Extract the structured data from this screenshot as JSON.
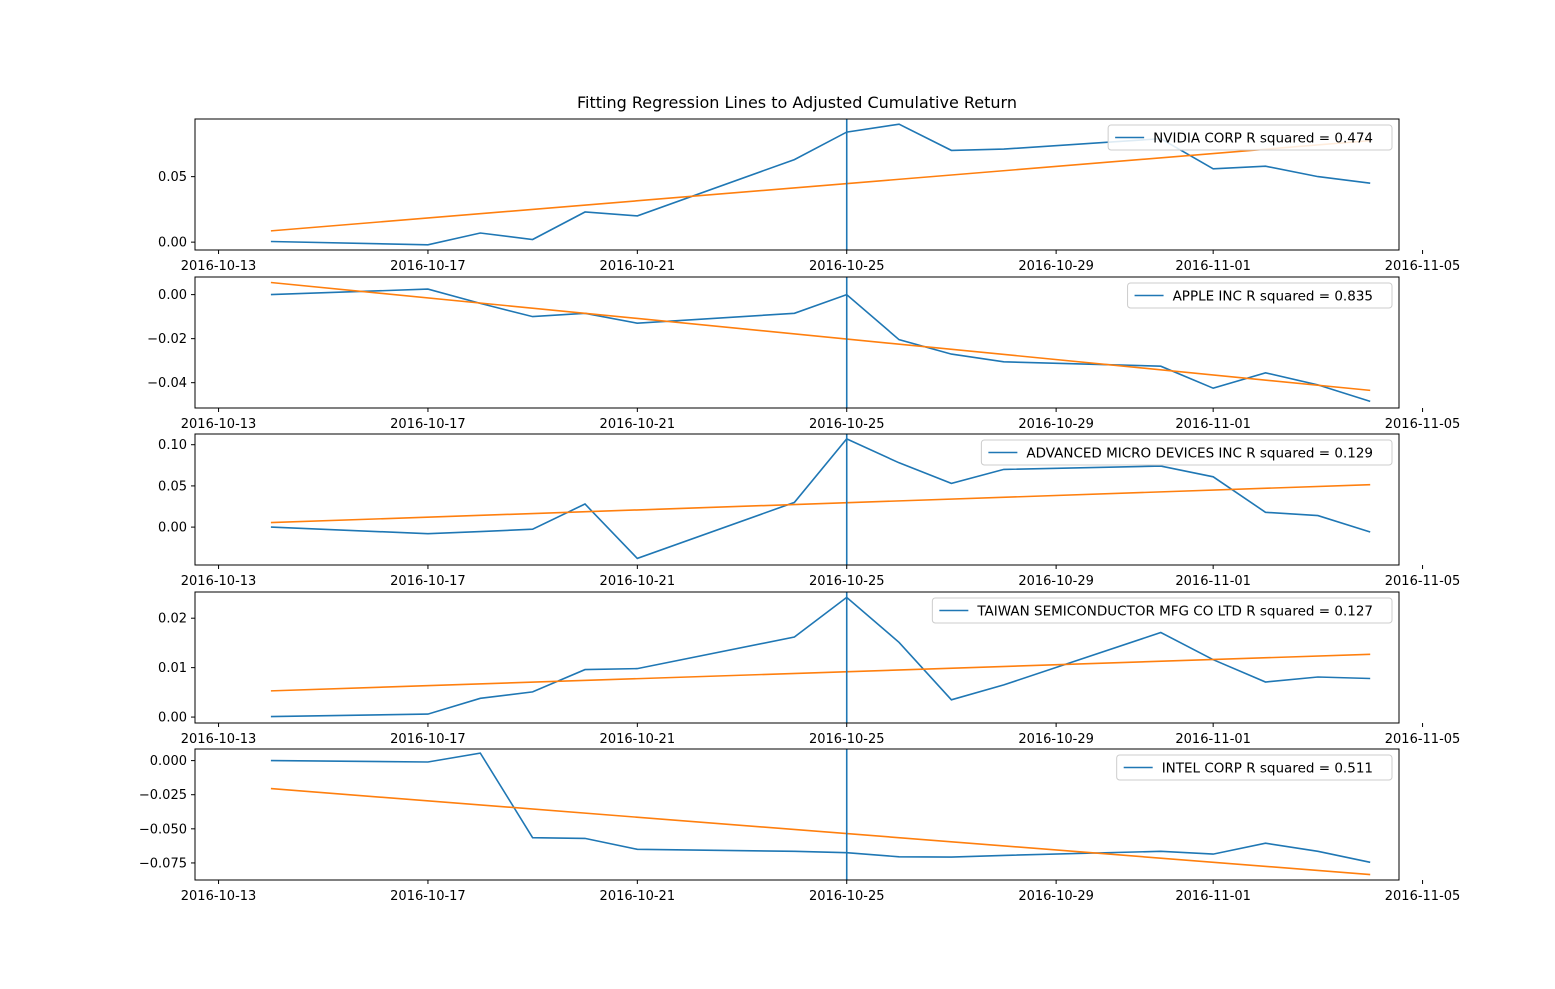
{
  "chart_data": {
    "type": "line",
    "title": "Fitting Regression Lines to Adjusted Cumulative Return",
    "x_tick_labels": [
      "2016-10-13",
      "2016-10-17",
      "2016-10-21",
      "2016-10-25",
      "2016-10-29",
      "2016-11-01",
      "2016-11-05"
    ],
    "x": [
      "2016-10-14",
      "2016-10-17",
      "2016-10-18",
      "2016-10-19",
      "2016-10-20",
      "2016-10-21",
      "2016-10-24",
      "2016-10-25",
      "2016-10-26",
      "2016-10-27",
      "2016-10-28",
      "2016-10-31",
      "2016-11-01",
      "2016-11-02",
      "2016-11-03",
      "2016-11-04"
    ],
    "event_date": "2016-10-25",
    "colors": {
      "returns": "#1f77b4",
      "regression": "#ff7f0e",
      "event_line": "#1f77b4"
    },
    "panels": [
      {
        "name": "NVIDIA CORP",
        "r_squared_label": "R squared = 0.474",
        "ylim": [
          -0.006,
          0.094
        ],
        "y_ticks": [
          0.0,
          0.05
        ],
        "y_tick_labels": [
          "0.00",
          "0.05"
        ],
        "legend_position": "upper right",
        "values": [
          0.0005,
          -0.002,
          0.007,
          0.002,
          0.023,
          0.02,
          0.063,
          0.084,
          0.09,
          0.07,
          0.071,
          0.079,
          0.056,
          0.058,
          0.05,
          0.045
        ],
        "regression": [
          0.0086,
          0.0775
        ]
      },
      {
        "name": "APPLE INC",
        "r_squared_label": "R squared = 0.835",
        "ylim": [
          -0.0515,
          0.008
        ],
        "y_ticks": [
          0.0,
          -0.02,
          -0.04
        ],
        "y_tick_labels": [
          "0.00",
          "−0.02",
          "−0.04"
        ],
        "legend_position": "upper right",
        "values": [
          0.0,
          0.0025,
          -0.004,
          -0.01,
          -0.0085,
          -0.013,
          -0.0085,
          0.0,
          -0.0205,
          -0.027,
          -0.0305,
          -0.0325,
          -0.0425,
          -0.0355,
          -0.041,
          -0.0485
        ],
        "regression": [
          0.0055,
          -0.0435
        ]
      },
      {
        "name": "ADVANCED MICRO DEVICES INC",
        "r_squared_label": "R squared = 0.129",
        "ylim": [
          -0.046,
          0.113
        ],
        "y_ticks": [
          0.0,
          0.05,
          0.1
        ],
        "y_tick_labels": [
          "0.00",
          "0.05",
          "0.10"
        ],
        "legend_position": "upper right",
        "values": [
          0.0,
          -0.008,
          -0.0055,
          -0.0025,
          0.028,
          -0.038,
          0.03,
          0.107,
          0.078,
          0.053,
          0.07,
          0.074,
          0.061,
          0.018,
          0.014,
          -0.006
        ],
        "regression": [
          0.0055,
          0.0515
        ]
      },
      {
        "name": "TAIWAN SEMICONDUCTOR MFG CO LTD",
        "r_squared_label": "R squared = 0.127",
        "ylim": [
          -0.0012,
          0.0253
        ],
        "y_ticks": [
          0.0,
          0.01,
          0.02
        ],
        "y_tick_labels": [
          "0.00",
          "0.01",
          "0.02"
        ],
        "legend_position": "upper right",
        "values": [
          0.0001,
          0.0006,
          0.0038,
          0.0051,
          0.0096,
          0.0098,
          0.0162,
          0.0242,
          0.0151,
          0.0035,
          0.0065,
          0.0171,
          0.0116,
          0.0071,
          0.0081,
          0.0078
        ],
        "regression": [
          0.0053,
          0.0127
        ]
      },
      {
        "name": "INTEL CORP",
        "r_squared_label": "R squared = 0.511",
        "ylim": [
          -0.0875,
          0.0085
        ],
        "y_ticks": [
          0.0,
          -0.025,
          -0.05,
          -0.075
        ],
        "y_tick_labels": [
          "0.000",
          "−0.025",
          "−0.050",
          "−0.075"
        ],
        "legend_position": "upper right",
        "values": [
          0.0,
          -0.001,
          0.0055,
          -0.0565,
          -0.057,
          -0.065,
          -0.0665,
          -0.0675,
          -0.0705,
          -0.0707,
          -0.0695,
          -0.0665,
          -0.0685,
          -0.0605,
          -0.0665,
          -0.0745
        ],
        "regression": [
          -0.0205,
          -0.0835
        ]
      }
    ]
  }
}
